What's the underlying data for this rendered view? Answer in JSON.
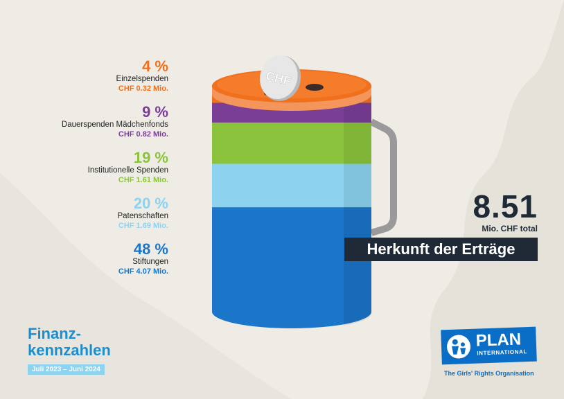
{
  "chart_data": {
    "type": "stacked-cup",
    "title": "Herkunft der Erträge",
    "total": "8.51",
    "total_unit": "Mio. CHF total",
    "coin_label": "CHF",
    "series": [
      {
        "name": "Stiftungen",
        "percent_label": "48 %",
        "percent": 48,
        "amount": "CHF 4.07 Mio.",
        "value": 4.07,
        "color": "#1b75c9"
      },
      {
        "name": "Patenschaften",
        "percent_label": "20 %",
        "percent": 20,
        "amount": "CHF 1.69 Mio.",
        "value": 1.69,
        "color": "#8dd3ef"
      },
      {
        "name": "Institutionelle Spenden",
        "percent_label": "19 %",
        "percent": 19,
        "amount": "CHF 1.61 Mio.",
        "value": 1.61,
        "color": "#8bc43c"
      },
      {
        "name": "Dauerspenden Mädchenfonds",
        "percent_label": "9 %",
        "percent": 9,
        "amount": "CHF 0.82 Mio.",
        "value": 0.82,
        "color": "#7a3e97"
      },
      {
        "name": "Einzelspenden",
        "percent_label": "4 %",
        "percent": 4,
        "amount": "CHF 0.32 Mio.",
        "value": 0.32,
        "color": "#f0701e"
      }
    ]
  },
  "footer": {
    "title_line1": "Finanz-",
    "title_line2": "kennzahlen",
    "period": "Juli 2023 – Juni 2024"
  },
  "logo": {
    "name": "PLAN",
    "sub": "INTERNATIONAL",
    "tagline": "The Girls' Rights Organisation"
  }
}
